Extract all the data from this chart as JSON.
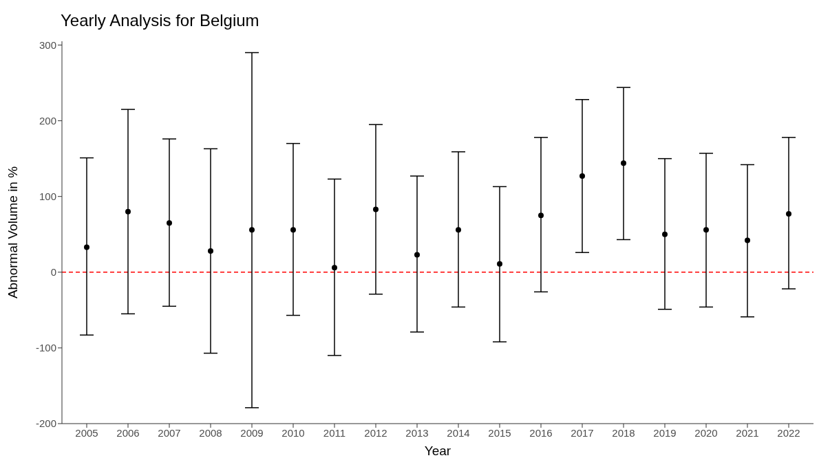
{
  "chart_data": {
    "type": "scatter",
    "title": "Yearly Analysis for Belgium",
    "xlabel": "Year",
    "ylabel": "Abnormal Volume in %",
    "categories": [
      "2005",
      "2006",
      "2007",
      "2008",
      "2009",
      "2010",
      "2011",
      "2012",
      "2013",
      "2014",
      "2015",
      "2016",
      "2017",
      "2018",
      "2019",
      "2020",
      "2021",
      "2022"
    ],
    "series": [
      {
        "color": "#000000",
        "values": [
          33,
          80,
          65,
          28,
          56,
          56,
          6,
          83,
          23,
          56,
          11,
          75,
          127,
          144,
          50,
          56,
          42,
          77
        ],
        "errors": [
          [
            -83,
            151
          ],
          [
            -55,
            215
          ],
          [
            -45,
            176
          ],
          [
            -107,
            163
          ],
          [
            -179,
            290
          ],
          [
            -57,
            170
          ],
          [
            -110,
            123
          ],
          [
            -29,
            195
          ],
          [
            -79,
            127
          ],
          [
            -46,
            159
          ],
          [
            -92,
            113
          ],
          [
            -26,
            178
          ],
          [
            26,
            228
          ],
          [
            43,
            244
          ],
          [
            -49,
            150
          ],
          [
            -46,
            157
          ],
          [
            -59,
            142
          ],
          [
            -22,
            178
          ]
        ]
      }
    ],
    "ylim": [
      -200,
      305
    ],
    "yticks": [
      -200,
      -100,
      0,
      100,
      200,
      300
    ],
    "grid": false,
    "legend": false,
    "marker": "circle",
    "ref_lines": [
      {
        "axis": "y",
        "value": 0,
        "color": "#ff0000",
        "line_style": "dashed"
      }
    ]
  }
}
